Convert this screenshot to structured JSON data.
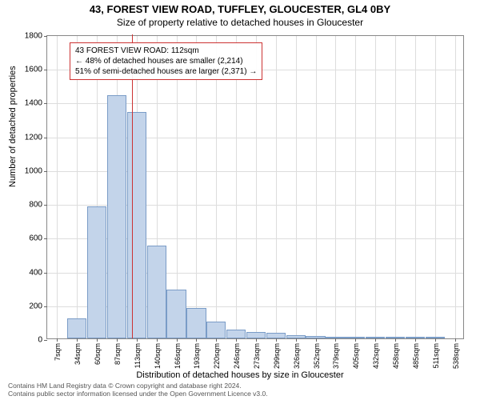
{
  "header": {
    "line1": "43, FOREST VIEW ROAD, TUFFLEY, GLOUCESTER, GL4 0BY",
    "line2": "Size of property relative to detached houses in Gloucester"
  },
  "chart": {
    "type": "histogram",
    "ylabel": "Number of detached properties",
    "xlabel": "Distribution of detached houses by size in Gloucester",
    "ylim": [
      0,
      1800
    ],
    "ytick_step": 200,
    "grid_color": "#dddddd",
    "axis_color": "#888888",
    "bar_fill": "#c3d4ea",
    "bar_stroke": "#7a9cc7",
    "background_color": "#ffffff",
    "marker_x": 112,
    "marker_color": "#cc3333",
    "x_min": 0,
    "x_max": 550,
    "categories": [
      "7sqm",
      "34sqm",
      "60sqm",
      "87sqm",
      "113sqm",
      "140sqm",
      "166sqm",
      "193sqm",
      "220sqm",
      "246sqm",
      "273sqm",
      "299sqm",
      "326sqm",
      "352sqm",
      "379sqm",
      "405sqm",
      "432sqm",
      "458sqm",
      "485sqm",
      "511sqm",
      "538sqm"
    ],
    "values": [
      0,
      120,
      780,
      1440,
      1340,
      550,
      290,
      180,
      100,
      50,
      40,
      35,
      20,
      15,
      8,
      5,
      3,
      2,
      1,
      1,
      0
    ]
  },
  "annotation": {
    "line1": "43 FOREST VIEW ROAD: 112sqm",
    "line2": "← 48% of detached houses are smaller (2,214)",
    "line3": "51% of semi-detached houses are larger (2,371) →",
    "border_color": "#cc3333"
  },
  "footer": {
    "line1": "Contains HM Land Registry data © Crown copyright and database right 2024.",
    "line2": "Contains public sector information licensed under the Open Government Licence v3.0."
  }
}
